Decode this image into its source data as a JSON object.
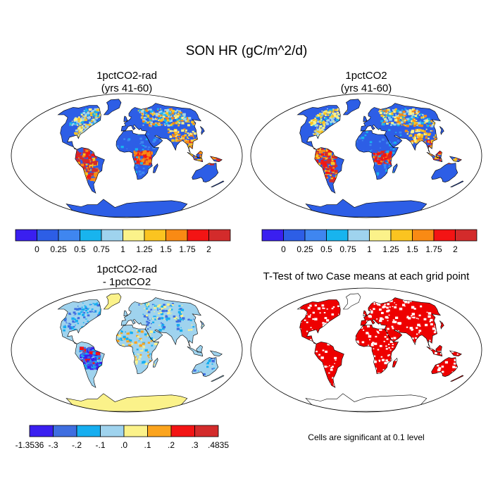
{
  "title": "SON HR (gC/m^2/d)",
  "panels": {
    "top_left": {
      "line1": "1pctCO2-rad",
      "line2": "(yrs 41-60)"
    },
    "top_right": {
      "line1": "1pctCO2",
      "line2": "(yrs 41-60)"
    },
    "bottom_left": {
      "line1": "1pctCO2-rad",
      "line2": "- 1pctCO2"
    },
    "bottom_right": {
      "line1": "T-Test of two Case means at each grid point"
    }
  },
  "colorbar_top": {
    "colors": [
      "#3a1ff0",
      "#2d5ee6",
      "#3f86f0",
      "#18b4ee",
      "#9fd3ee",
      "#fbf28a",
      "#fbc420",
      "#f98a14",
      "#f31414",
      "#d32b2b"
    ],
    "labels": [
      "0",
      "0.25",
      "0.5",
      "0.75",
      "1",
      "1.25",
      "1.5",
      "1.75",
      "2"
    ]
  },
  "colorbar_diff": {
    "colors": [
      "#3a1ff0",
      "#3f6ee0",
      "#16aef0",
      "#9fd3ee",
      "#fbf28a",
      "#fba41e",
      "#f31414",
      "#d32b2b"
    ],
    "labels": [
      "-1.3536",
      "-.3",
      "-.2",
      "-.1",
      ".0",
      ".1",
      ".2",
      ".3",
      ".4835"
    ]
  },
  "significance_color": "#ee0000",
  "note": "Cells are significant at 0.1 level"
}
